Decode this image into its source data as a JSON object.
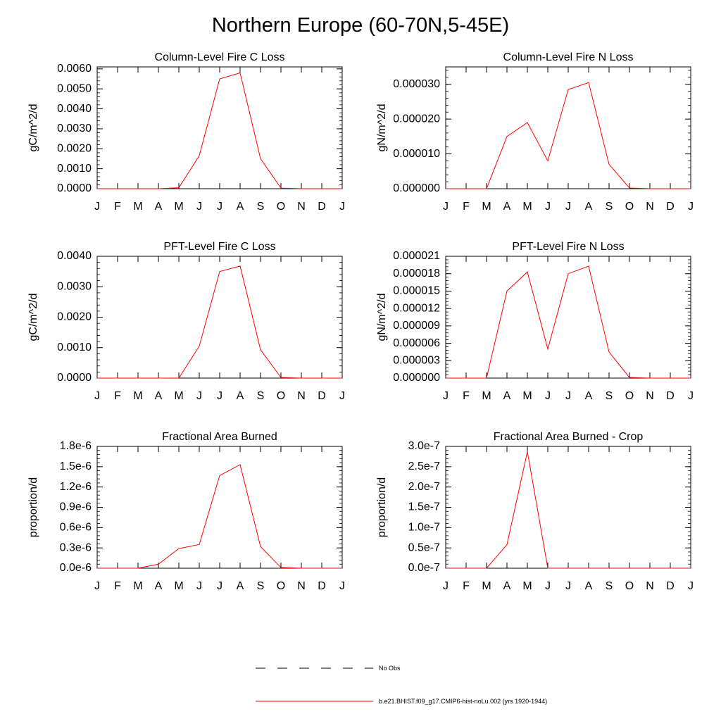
{
  "figure": {
    "title": "Northern Europe (60-70N,5-45E)"
  },
  "legend": [
    {
      "label": "No Obs",
      "style": "dashed",
      "color": "#000000"
    },
    {
      "label": "b.e21.BHIST.f09_g17.CMIP6-hist-noLu.002 (yrs 1920-1944)",
      "style": "solid",
      "color": "#ff0000"
    }
  ],
  "chart_data": [
    {
      "type": "line",
      "title": "Column-Level Fire C Loss",
      "ylabel": "gC/m^2/d",
      "xlabel": "",
      "categories": [
        "J",
        "F",
        "M",
        "A",
        "M",
        "J",
        "J",
        "A",
        "S",
        "O",
        "N",
        "D",
        "J"
      ],
      "ylim": [
        0,
        0.0061
      ],
      "yticks": [
        "0.0000",
        "0.0010",
        "0.0020",
        "0.0030",
        "0.0040",
        "0.0050",
        "0.0060"
      ],
      "ytick_values": [
        0,
        0.001,
        0.002,
        0.003,
        0.004,
        0.005,
        0.006
      ],
      "series": [
        {
          "color": "#ff0000",
          "values": [
            0,
            0,
            0,
            0,
            5e-05,
            0.00165,
            0.0055,
            0.0058,
            0.0015,
            3e-05,
            0,
            0,
            0
          ]
        }
      ]
    },
    {
      "type": "line",
      "title": "Column-Level Fire N Loss",
      "ylabel": "gN/m^2/d",
      "xlabel": "",
      "categories": [
        "J",
        "F",
        "M",
        "A",
        "M",
        "J",
        "J",
        "A",
        "S",
        "O",
        "N",
        "D",
        "J"
      ],
      "ylim": [
        0,
        3.5e-05
      ],
      "yticks": [
        "0.000000",
        "0.000010",
        "0.000020",
        "0.000030"
      ],
      "ytick_values": [
        0,
        1e-05,
        2e-05,
        3e-05
      ],
      "series": [
        {
          "color": "#ff0000",
          "values": [
            0,
            0,
            0,
            1.5e-05,
            1.9e-05,
            8e-06,
            2.85e-05,
            3.05e-05,
            7e-06,
            2e-07,
            0,
            0,
            0
          ]
        }
      ]
    },
    {
      "type": "line",
      "title": "PFT-Level Fire C Loss",
      "ylabel": "gC/m^2/d",
      "xlabel": "",
      "categories": [
        "J",
        "F",
        "M",
        "A",
        "M",
        "J",
        "J",
        "A",
        "S",
        "O",
        "N",
        "D",
        "J"
      ],
      "ylim": [
        0,
        0.004
      ],
      "yticks": [
        "0.0000",
        "0.0010",
        "0.0020",
        "0.0030",
        "0.0040"
      ],
      "ytick_values": [
        0,
        0.001,
        0.002,
        0.003,
        0.004
      ],
      "series": [
        {
          "color": "#ff0000",
          "values": [
            0,
            0,
            0,
            0,
            0,
            0.00105,
            0.0035,
            0.00368,
            0.00093,
            2e-05,
            0,
            0,
            0
          ]
        }
      ]
    },
    {
      "type": "line",
      "title": "PFT-Level Fire N Loss",
      "ylabel": "gN/m^2/d",
      "xlabel": "",
      "categories": [
        "J",
        "F",
        "M",
        "A",
        "M",
        "J",
        "J",
        "A",
        "S",
        "O",
        "N",
        "D",
        "J"
      ],
      "ylim": [
        0,
        2.1e-05
      ],
      "yticks": [
        "0.000000",
        "0.000003",
        "0.000006",
        "0.000009",
        "0.000012",
        "0.000015",
        "0.000018",
        "0.000021"
      ],
      "ytick_values": [
        0,
        3e-06,
        6e-06,
        9e-06,
        1.2e-05,
        1.5e-05,
        1.8e-05,
        2.1e-05
      ],
      "series": [
        {
          "color": "#ff0000",
          "values": [
            0,
            0,
            0,
            1.5e-05,
            1.83e-05,
            5e-06,
            1.8e-05,
            1.93e-05,
            4.5e-06,
            1e-07,
            0,
            0,
            0
          ]
        }
      ]
    },
    {
      "type": "line",
      "title": "Fractional Area Burned",
      "ylabel": "proportion/d",
      "xlabel": "",
      "categories": [
        "J",
        "F",
        "M",
        "A",
        "M",
        "J",
        "J",
        "A",
        "S",
        "O",
        "N",
        "D",
        "J"
      ],
      "ylim": [
        0,
        1.8e-06
      ],
      "yticks": [
        "0.0e-6",
        "0.3e-6",
        "0.6e-6",
        "0.9e-6",
        "1.2e-6",
        "1.5e-6",
        "1.8e-6"
      ],
      "ytick_values": [
        0,
        3e-07,
        6e-07,
        9e-07,
        1.2e-06,
        1.5e-06,
        1.8e-06
      ],
      "series": [
        {
          "color": "#ff0000",
          "values": [
            0,
            0,
            0,
            6e-08,
            2.9e-07,
            3.5e-07,
            1.37e-06,
            1.53e-06,
            3.2e-07,
            1e-08,
            0,
            0,
            0
          ]
        }
      ]
    },
    {
      "type": "line",
      "title": "Fractional Area Burned - Crop",
      "ylabel": "proportion/d",
      "xlabel": "",
      "categories": [
        "J",
        "F",
        "M",
        "A",
        "M",
        "J",
        "J",
        "A",
        "S",
        "O",
        "N",
        "D",
        "J"
      ],
      "ylim": [
        0,
        3e-07
      ],
      "yticks": [
        "0.0e-7",
        "0.5e-7",
        "1.0e-7",
        "1.5e-7",
        "2.0e-7",
        "2.5e-7",
        "3.0e-7"
      ],
      "ytick_values": [
        0,
        5e-08,
        1e-07,
        1.5e-07,
        2e-07,
        2.5e-07,
        3e-07
      ],
      "series": [
        {
          "color": "#ff0000",
          "values": [
            0,
            0,
            0,
            5.8e-08,
            2.87e-07,
            0,
            0,
            0,
            0,
            0,
            0,
            0,
            0
          ]
        }
      ]
    }
  ]
}
